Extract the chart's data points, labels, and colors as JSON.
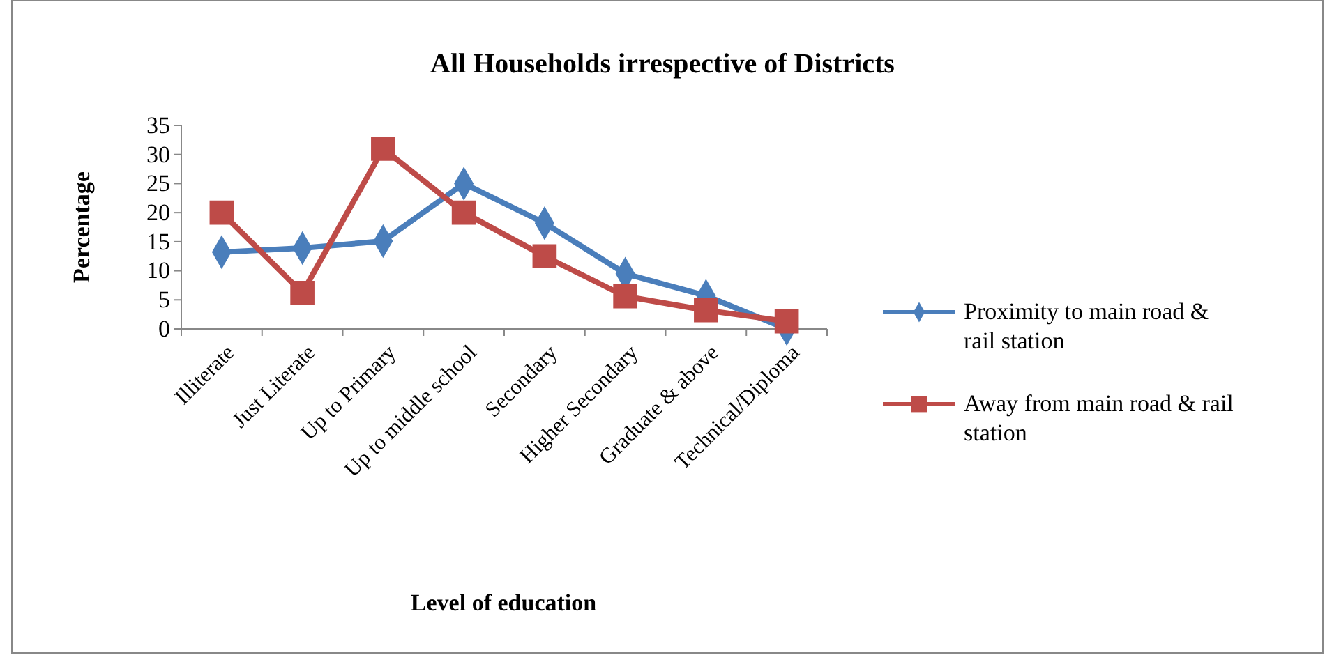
{
  "chart_data": {
    "type": "line",
    "title": "All Households irrespective of Districts",
    "xlabel": "Level of education",
    "ylabel": "Percentage",
    "categories": [
      "Illiterate",
      "Just Literate",
      "Up to Primary",
      "Up to middle school",
      "Secondary",
      "Higher Secondary",
      "Graduate & above",
      "Technical/Diploma"
    ],
    "series": [
      {
        "name": "Proximity to main road & rail station",
        "color": "#4a7ebb",
        "marker": "diamond",
        "values": [
          13.2,
          13.9,
          15.1,
          25,
          18.2,
          9.5,
          5.7,
          0
        ]
      },
      {
        "name": "Away from main road & rail station",
        "color": "#be4b48",
        "marker": "square",
        "values": [
          20,
          6.2,
          31,
          20,
          12.5,
          5.6,
          3.2,
          1.3
        ]
      }
    ],
    "ylim": [
      0,
      35
    ],
    "yticks": [
      0,
      5,
      10,
      15,
      20,
      25,
      30,
      35
    ],
    "legend": "right",
    "grid": false
  }
}
